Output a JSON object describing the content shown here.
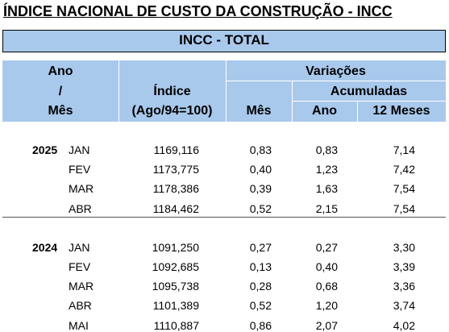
{
  "title": "ÍNDICE NACIONAL DE CUSTO DA CONSTRUÇÃO - INCC",
  "subtitle": "INCC - TOTAL",
  "header": {
    "ano": "Ano",
    "slash": "/",
    "mes": "Mês",
    "indice": "Índice",
    "base": "(Ago/94=100)",
    "variacoes": "Variações",
    "acumuladas": "Acumuladas",
    "col_mes": "Mês",
    "col_ano": "Ano",
    "col_12": "12 Meses"
  },
  "groups": [
    {
      "year": "2025",
      "rows": [
        [
          "JAN",
          "1169,116",
          "0,83",
          "0,83",
          "7,14"
        ],
        [
          "FEV",
          "1173,775",
          "0,40",
          "1,23",
          "7,42"
        ],
        [
          "MAR",
          "1178,386",
          "0,39",
          "1,63",
          "7,54"
        ],
        [
          "ABR",
          "1184,462",
          "0,52",
          "2,15",
          "7,54"
        ]
      ]
    },
    {
      "year": "2024",
      "rows": [
        [
          "JAN",
          "1091,250",
          "0,27",
          "0,27",
          "3,30"
        ],
        [
          "FEV",
          "1092,685",
          "0,13",
          "0,40",
          "3,39"
        ],
        [
          "MAR",
          "1095,738",
          "0,28",
          "0,68",
          "3,36"
        ],
        [
          "ABR",
          "1101,389",
          "0,52",
          "1,20",
          "3,74"
        ],
        [
          "MAI",
          "1110,887",
          "0,86",
          "2,07",
          "4,02"
        ]
      ]
    }
  ]
}
